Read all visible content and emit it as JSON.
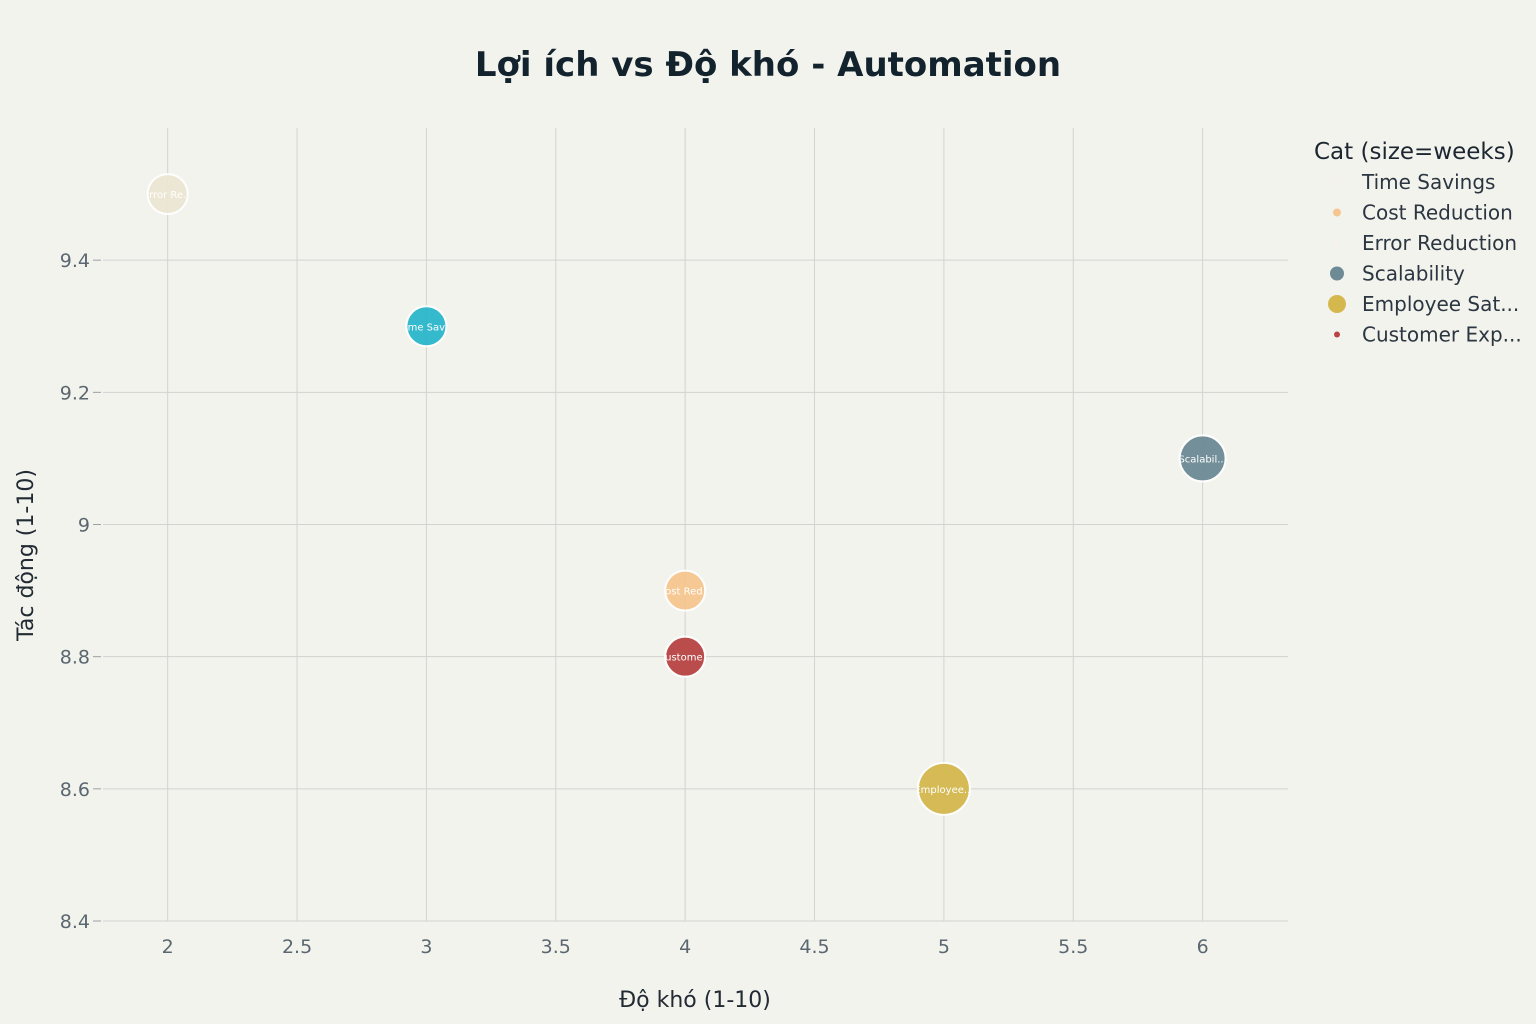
{
  "chart_data": {
    "type": "scatter",
    "title": "Lợi ích vs Độ khó - Automation",
    "xlabel": "Độ khó (1-10)",
    "ylabel": "Tác động (1-10)",
    "xlim": [
      1.75,
      6.33
    ],
    "ylim": [
      8.4,
      9.6
    ],
    "xticks": [
      "2",
      "2.5",
      "3",
      "3.5",
      "4",
      "4.5",
      "5",
      "5.5",
      "6"
    ],
    "yticks": [
      "8.4",
      "8.6",
      "8.8",
      "9",
      "9.2",
      "9.4"
    ],
    "grid": true,
    "legend": {
      "title": "Cat (size=weeks)",
      "placement": "right"
    },
    "series": [
      {
        "name": "Time Savings",
        "label": "Time Sav...",
        "color": "#2bb6cc",
        "x": 3,
        "y": 9.3,
        "size": 4,
        "legend_marker": "#f5f2ea"
      },
      {
        "name": "Cost Reduction",
        "label": "Cost Red...",
        "color": "#f6c690",
        "x": 4,
        "y": 8.9,
        "size": 4,
        "legend_marker": "#f6c690"
      },
      {
        "name": "Error Reduction",
        "label": "Error Re...",
        "color": "#ece6d3",
        "x": 2,
        "y": 9.5,
        "size": 4,
        "legend_marker": "#f5f2ea"
      },
      {
        "name": "Scalability",
        "label": "Scalabil...",
        "color": "#6d8a95",
        "x": 6,
        "y": 9.1,
        "size": 6,
        "legend_marker": "#6d8a95"
      },
      {
        "name": "Employee Sat...",
        "label": "Employee...",
        "color": "#d4b84e",
        "x": 5,
        "y": 8.6,
        "size": 8,
        "legend_marker": "#d4b84e"
      },
      {
        "name": "Customer Exp...",
        "label": "Custome...",
        "color": "#b84543",
        "x": 4,
        "y": 8.8,
        "size": 4,
        "legend_marker": "#b84543"
      }
    ]
  }
}
